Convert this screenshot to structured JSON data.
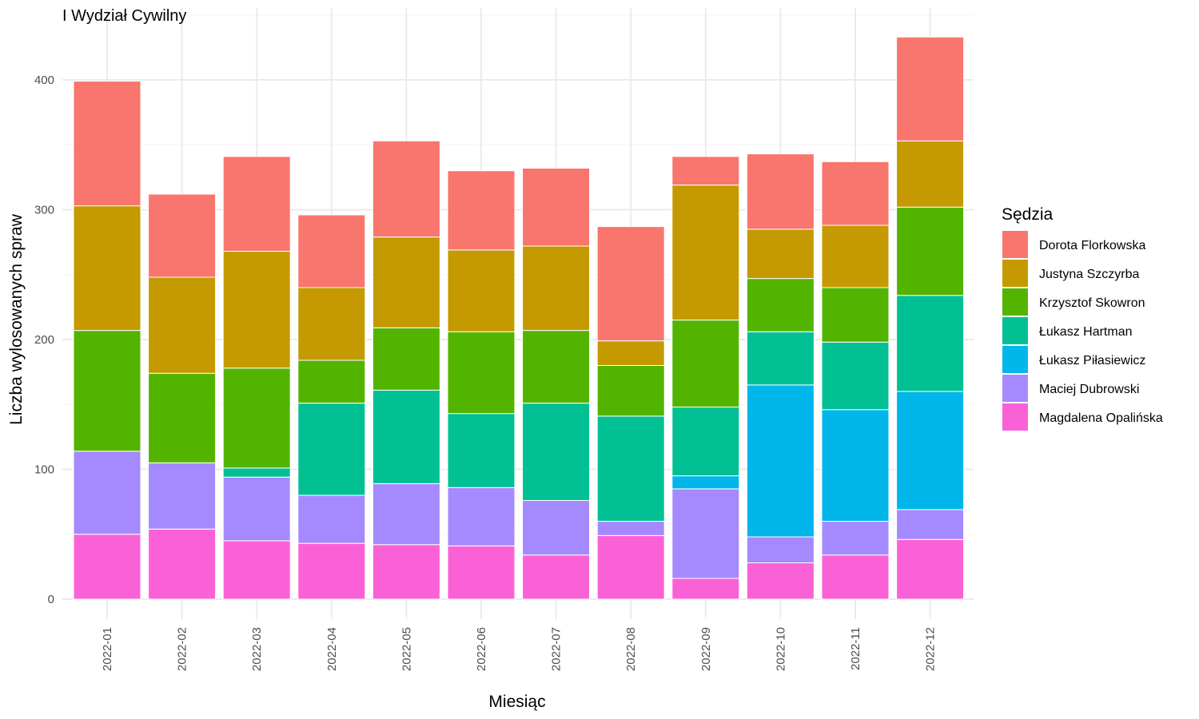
{
  "chart_data": {
    "type": "bar",
    "stacked": true,
    "title": "I Wydział Cywilny",
    "xlabel": "Miesiąc",
    "ylabel": "Liczba wylosowanych spraw",
    "ylim": [
      0,
      450
    ],
    "yticks": [
      0,
      100,
      200,
      300,
      400
    ],
    "grid": true,
    "legend_title": "Sędzia",
    "legend_position": "right",
    "categories": [
      "2022-01",
      "2022-02",
      "2022-03",
      "2022-04",
      "2022-05",
      "2022-06",
      "2022-07",
      "2022-08",
      "2022-09",
      "2022-10",
      "2022-11",
      "2022-12"
    ],
    "series": [
      {
        "name": "Magdalena Opalińska",
        "color": "#FB61D7",
        "values": [
          50,
          54,
          45,
          43,
          42,
          41,
          34,
          49,
          16,
          28,
          34,
          46
        ]
      },
      {
        "name": "Maciej Dubrowski",
        "color": "#A58AFF",
        "values": [
          64,
          51,
          49,
          37,
          47,
          45,
          42,
          11,
          69,
          20,
          26,
          23
        ]
      },
      {
        "name": "Łukasz Piłasiewicz",
        "color": "#00B6EB",
        "values": [
          0,
          0,
          0,
          0,
          0,
          0,
          0,
          0,
          10,
          117,
          86,
          91
        ]
      },
      {
        "name": "Łukasz Hartman",
        "color": "#00C094",
        "values": [
          0,
          0,
          7,
          71,
          72,
          57,
          75,
          81,
          53,
          41,
          52,
          74
        ]
      },
      {
        "name": "Krzysztof Skowron",
        "color": "#53B400",
        "values": [
          93,
          69,
          77,
          33,
          48,
          63,
          56,
          39,
          67,
          41,
          42,
          68
        ]
      },
      {
        "name": "Justyna Szczyrba",
        "color": "#C49A00",
        "values": [
          96,
          74,
          90,
          56,
          70,
          63,
          65,
          19,
          104,
          38,
          48,
          51
        ]
      },
      {
        "name": "Dorota Florkowska",
        "color": "#F8766D",
        "values": [
          96,
          64,
          73,
          56,
          74,
          61,
          60,
          88,
          22,
          58,
          49,
          80
        ]
      }
    ],
    "legend_order": [
      "Dorota Florkowska",
      "Justyna Szczyrba",
      "Krzysztof Skowron",
      "Łukasz Hartman",
      "Łukasz Piłasiewicz",
      "Maciej Dubrowski",
      "Magdalena Opalińska"
    ]
  }
}
